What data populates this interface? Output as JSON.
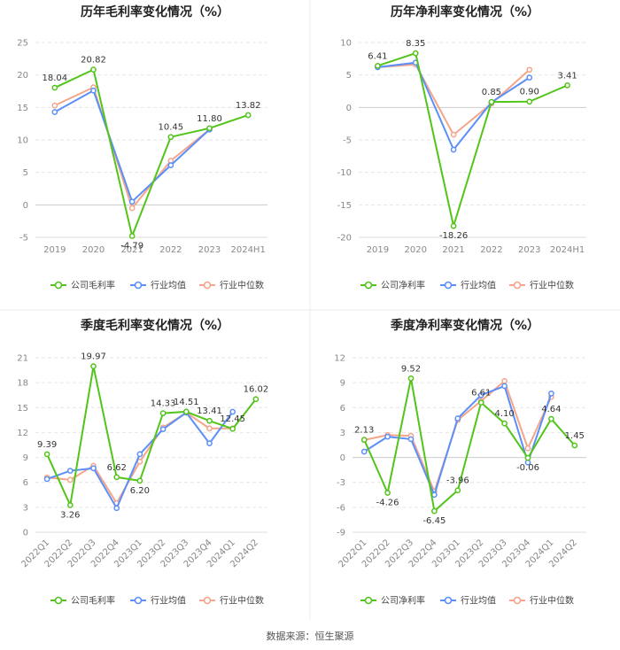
{
  "source": "数据来源：恒生聚源",
  "colors": {
    "company": "#52c41a",
    "avg": "#5b8ff9",
    "median": "#f4a58a"
  },
  "legend_names": {
    "avg": "行业均值",
    "median": "行业中位数"
  },
  "chart_data": [
    {
      "type": "line",
      "title": "历年毛利率变化情况（%）",
      "categories": [
        "2019",
        "2020",
        "2021",
        "2022",
        "2023",
        "2024H1"
      ],
      "ylim": [
        -5,
        25
      ],
      "yticks": [
        -5,
        0,
        5,
        10,
        15,
        20,
        25
      ],
      "grid": true,
      "legend_placement": "bottom",
      "series": [
        {
          "name": "公司毛利率",
          "key": "company",
          "values": [
            18.04,
            20.82,
            -4.79,
            10.45,
            11.8,
            13.82
          ],
          "labels": [
            "18.04",
            "20.82",
            "-4.79",
            "10.45",
            "11.80",
            "13.82"
          ]
        },
        {
          "name": "行业均值",
          "key": "avg",
          "values": [
            14.3,
            17.6,
            0.5,
            6.1,
            11.6,
            null
          ]
        },
        {
          "name": "行业中位数",
          "key": "median",
          "values": [
            15.3,
            18.1,
            -0.5,
            6.8,
            11.6,
            null
          ]
        }
      ]
    },
    {
      "type": "line",
      "title": "历年净利率变化情况（%）",
      "categories": [
        "2019",
        "2020",
        "2021",
        "2022",
        "2023",
        "2024H1"
      ],
      "ylim": [
        -20,
        10
      ],
      "yticks": [
        -20,
        -15,
        -10,
        -5,
        0,
        5,
        10
      ],
      "grid": true,
      "legend_placement": "bottom",
      "series": [
        {
          "name": "公司净利率",
          "key": "company",
          "values": [
            6.41,
            8.35,
            -18.26,
            0.85,
            0.9,
            3.41
          ],
          "labels": [
            "6.41",
            "8.35",
            "-18.26",
            "0.85",
            "0.90",
            "3.41"
          ]
        },
        {
          "name": "行业均值",
          "key": "avg",
          "values": [
            6.2,
            6.9,
            -6.5,
            0.8,
            4.6,
            null
          ]
        },
        {
          "name": "行业中位数",
          "key": "median",
          "values": [
            6.2,
            6.6,
            -4.2,
            0.6,
            5.8,
            null
          ]
        }
      ]
    },
    {
      "type": "line",
      "title": "季度毛利率变化情况（%）",
      "categories": [
        "2022Q1",
        "2022Q2",
        "2022Q3",
        "2022Q4",
        "2023Q1",
        "2023Q2",
        "2023Q3",
        "2023Q4",
        "2024Q1",
        "2024Q2"
      ],
      "ylim": [
        0,
        21
      ],
      "yticks": [
        0,
        3,
        6,
        9,
        12,
        15,
        18,
        21
      ],
      "grid": true,
      "legend_placement": "bottom",
      "series": [
        {
          "name": "公司毛利率",
          "key": "company",
          "values": [
            9.39,
            3.26,
            19.97,
            6.62,
            6.2,
            14.33,
            14.51,
            13.41,
            12.45,
            16.02
          ],
          "labels": [
            "9.39",
            "3.26",
            "19.97",
            "6.62",
            "6.20",
            "14.33",
            "14.51",
            "13.41",
            "12.45",
            "16.02"
          ]
        },
        {
          "name": "行业均值",
          "key": "avg",
          "values": [
            6.4,
            7.4,
            7.7,
            2.9,
            9.4,
            12.4,
            14.4,
            10.7,
            14.5,
            null
          ]
        },
        {
          "name": "行业中位数",
          "key": "median",
          "values": [
            6.6,
            6.3,
            8.0,
            3.5,
            8.5,
            12.6,
            14.4,
            12.5,
            12.5,
            null
          ]
        }
      ]
    },
    {
      "type": "line",
      "title": "季度净利率变化情况（%）",
      "categories": [
        "2022Q1",
        "2022Q2",
        "2022Q3",
        "2022Q4",
        "2023Q1",
        "2023Q2",
        "2023Q3",
        "2023Q4",
        "2024Q1",
        "2024Q2"
      ],
      "ylim": [
        -9,
        12
      ],
      "yticks": [
        -9,
        -6,
        -3,
        0,
        3,
        6,
        9,
        12
      ],
      "grid": true,
      "legend_placement": "bottom",
      "series": [
        {
          "name": "公司净利率",
          "key": "company",
          "values": [
            2.13,
            -4.26,
            9.52,
            -6.45,
            -3.96,
            6.61,
            4.1,
            -0.06,
            4.64,
            1.45
          ],
          "labels": [
            "2.13",
            "-4.26",
            "9.52",
            "-6.45",
            "-3.96",
            "6.61",
            "4.10",
            "-0.06",
            "4.64",
            "1.45"
          ]
        },
        {
          "name": "行业均值",
          "key": "avg",
          "values": [
            0.7,
            2.5,
            2.2,
            -4.5,
            4.7,
            7.5,
            8.6,
            -0.6,
            7.7,
            null
          ]
        },
        {
          "name": "行业中位数",
          "key": "median",
          "values": [
            2.1,
            2.7,
            2.6,
            -4.1,
            4.5,
            6.8,
            9.2,
            1.1,
            7.3,
            null
          ]
        }
      ]
    }
  ]
}
